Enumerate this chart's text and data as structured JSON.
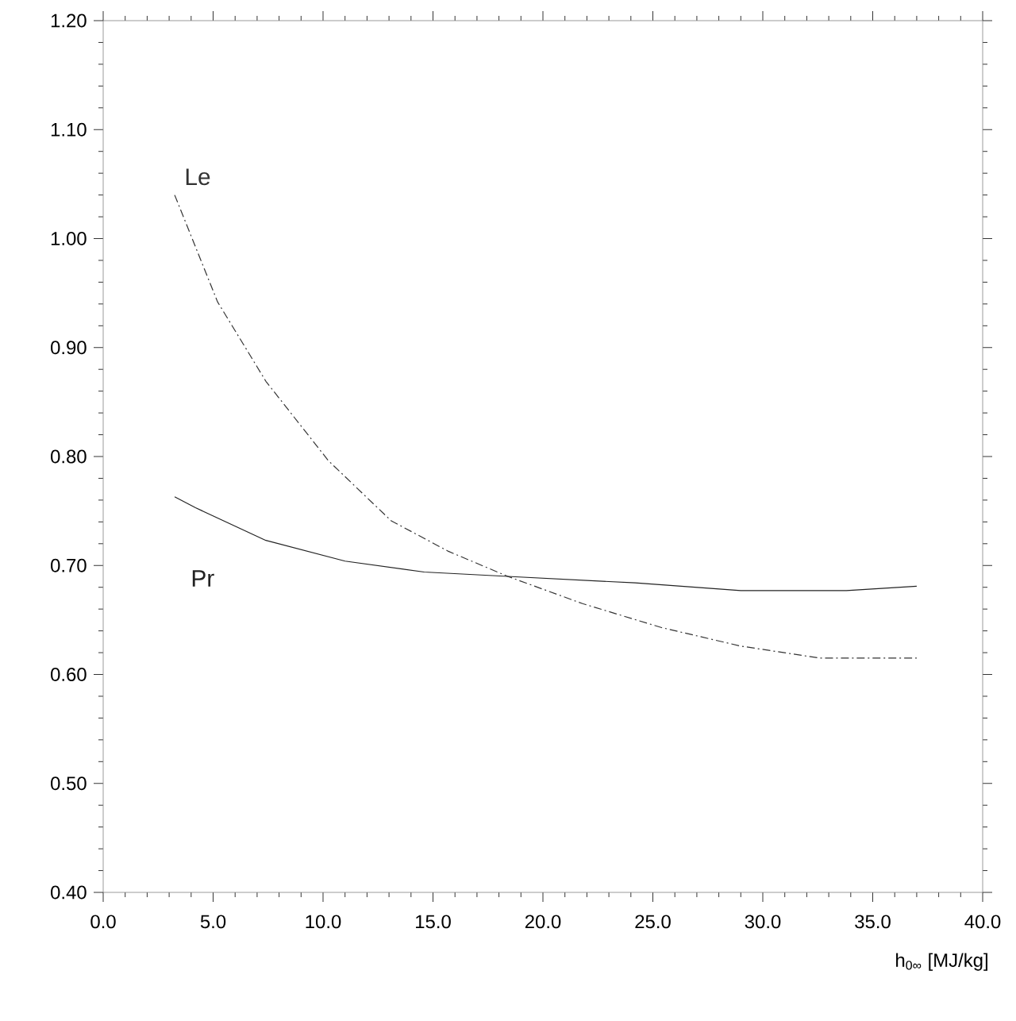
{
  "chart_data": {
    "type": "line",
    "xlabel": "h$_{0∞}$ [MJ/kg]",
    "xlim": [
      0,
      40
    ],
    "ylim": [
      0.4,
      1.2
    ],
    "xticks": [
      {
        "value": 0,
        "label": "0.0"
      },
      {
        "value": 5,
        "label": "5.0"
      },
      {
        "value": 10,
        "label": "10.0"
      },
      {
        "value": 15,
        "label": "15.0"
      },
      {
        "value": 20,
        "label": "20.0"
      },
      {
        "value": 25,
        "label": "25.0"
      },
      {
        "value": 30,
        "label": "30.0"
      },
      {
        "value": 35,
        "label": "35.0"
      },
      {
        "value": 40,
        "label": "40.0"
      }
    ],
    "yticks": [
      {
        "value": 0.4,
        "label": "0.40"
      },
      {
        "value": 0.5,
        "label": "0.50"
      },
      {
        "value": 0.6,
        "label": "0.60"
      },
      {
        "value": 0.7,
        "label": "0.70"
      },
      {
        "value": 0.8,
        "label": "0.80"
      },
      {
        "value": 0.9,
        "label": "0.90"
      },
      {
        "value": 1.0,
        "label": "1.00"
      },
      {
        "value": 1.1,
        "label": "1.10"
      },
      {
        "value": 1.2,
        "label": "1.20"
      }
    ],
    "grid": false,
    "marker": "none",
    "series": [
      {
        "name": "Le",
        "color": "#333333",
        "line_style": "dashed",
        "x": [
          3.25,
          5.2,
          7.4,
          10.25,
          13.1,
          15.7,
          18.4,
          21.8,
          25.4,
          29.0,
          32.6,
          37.0
        ],
        "values": [
          1.04,
          0.942,
          0.869,
          0.796,
          0.741,
          0.713,
          0.69,
          0.665,
          0.643,
          0.626,
          0.615,
          0.615
        ]
      },
      {
        "name": "Pr",
        "color": "#222222",
        "line_style": "solid",
        "x": [
          3.25,
          4.2,
          7.4,
          11.0,
          14.6,
          18.4,
          24.2,
          29.0,
          33.8,
          37.0
        ],
        "values": [
          0.763,
          0.753,
          0.723,
          0.704,
          0.694,
          0.69,
          0.684,
          0.677,
          0.677,
          0.681
        ]
      }
    ]
  }
}
